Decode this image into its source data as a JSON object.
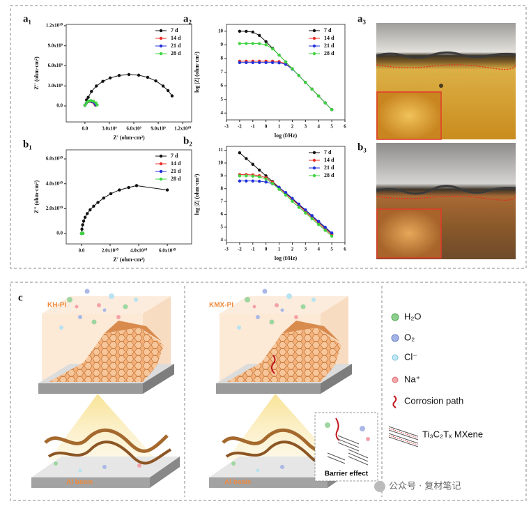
{
  "chart_data": [
    {
      "type": "line",
      "panel": "a₁",
      "x_label": "Z' (ohm·cm²)",
      "y_label": "Z'' (ohm·cm²)",
      "legend": "upper right",
      "xlim": [
        -2300000000.0,
        13100000000.0
      ],
      "ylim": [
        -2400000000.0,
        12200000000.0
      ],
      "xticks": [
        {
          "value": 0,
          "label": "0.0"
        },
        {
          "value": 3000000000.0,
          "label": "3.0x10⁹"
        },
        {
          "value": 6000000000.0,
          "label": "6.0x10⁹"
        },
        {
          "value": 9000000000.0,
          "label": "9.0x10⁹"
        },
        {
          "value": 12000000000.0,
          "label": "1.2x10¹⁰"
        }
      ],
      "yticks": [
        {
          "value": 0,
          "label": "0.0"
        },
        {
          "value": 3000000000.0,
          "label": "3.0x10⁹"
        },
        {
          "value": 6000000000.0,
          "label": "6.0x10⁹"
        },
        {
          "value": 9000000000.0,
          "label": "9.0x10⁹"
        },
        {
          "value": 12000000000.0,
          "label": "1.2x10¹⁰"
        }
      ],
      "series": [
        {
          "name": "7 d",
          "color": "#111111",
          "x": [
            200000000.0,
            400000000.0,
            800000000.0,
            1400000000.0,
            2200000000.0,
            3100000000.0,
            4200000000.0,
            5400000000.0,
            6600000000.0,
            7700000000.0,
            8700000000.0,
            9600000000.0,
            10200000000.0,
            10700000000.0
          ],
          "values": [
            900000000.0,
            1280000000.0,
            2170000000.0,
            2980000000.0,
            3680000000.0,
            4190000000.0,
            4560000000.0,
            4700000000.0,
            4600000000.0,
            4280000000.0,
            3750000000.0,
            2980000000.0,
            2300000000.0,
            1500000000.0
          ]
        },
        {
          "name": "14 d",
          "color": "#e8312a",
          "x": [
            0,
            170000000.0,
            380000000.0,
            640000000.0,
            890000000.0,
            1150000000.0,
            1280000000.0
          ],
          "values": [
            80000000.0,
            420000000.0,
            640000000.0,
            680000000.0,
            600000000.0,
            380000000.0,
            130000000.0
          ]
        },
        {
          "name": "21 d",
          "color": "#2130d8",
          "x": [
            0,
            180000000.0,
            400000000.0,
            680000000.0,
            940000000.0,
            1220000000.0,
            1350000000.0
          ],
          "values": [
            90000000.0,
            450000000.0,
            680000000.0,
            720000000.0,
            630000000.0,
            400000000.0,
            140000000.0
          ]
        },
        {
          "name": "28 d",
          "color": "#3fd43f",
          "x": [
            0,
            200000000.0,
            450000000.0,
            750000000.0,
            1050000000.0,
            1350000000.0,
            1500000000.0
          ],
          "values": [
            100000000.0,
            500000000.0,
            750000000.0,
            800000000.0,
            700000000.0,
            450000000.0,
            150000000.0
          ]
        }
      ]
    },
    {
      "type": "line",
      "panel": "a₂",
      "x_label": "log (f/Hz)",
      "y_label": "log |Z| (ohm·cm²)",
      "legend": "upper right",
      "xlim": [
        -3,
        6
      ],
      "ylim": [
        3.5,
        10.5
      ],
      "xticks": [
        -3,
        -2,
        -1,
        0,
        1,
        2,
        3,
        4,
        5,
        6
      ],
      "yticks": [
        4,
        5,
        6,
        7,
        8,
        9,
        10
      ],
      "x": [
        -2,
        -1.5,
        -1,
        -0.5,
        0,
        0.5,
        1,
        1.5,
        2,
        2.5,
        3,
        3.5,
        4,
        4.5,
        5
      ],
      "series": [
        {
          "name": "7 d",
          "color": "#111111",
          "values": [
            10.0,
            9.99,
            9.94,
            9.69,
            9.24,
            8.75,
            8.25,
            7.75,
            7.25,
            6.75,
            6.25,
            5.75,
            5.25,
            4.75,
            4.25
          ]
        },
        {
          "name": "14 d",
          "color": "#e8312a",
          "values": [
            7.8,
            7.8,
            7.8,
            7.8,
            7.8,
            7.8,
            7.77,
            7.62,
            7.23,
            6.75,
            6.25,
            5.75,
            5.25,
            4.75,
            4.25
          ]
        },
        {
          "name": "21 d",
          "color": "#2130d8",
          "values": [
            7.7,
            7.7,
            7.7,
            7.7,
            7.7,
            7.7,
            7.68,
            7.57,
            7.22,
            6.75,
            6.25,
            5.75,
            5.25,
            4.75,
            4.25
          ]
        },
        {
          "name": "28 d",
          "color": "#3fd43f",
          "values": [
            9.1,
            9.1,
            9.1,
            9.09,
            9.01,
            8.71,
            8.25,
            7.75,
            7.25,
            6.75,
            6.25,
            5.75,
            5.25,
            4.75,
            4.25
          ]
        }
      ]
    },
    {
      "type": "line",
      "panel": "b₁",
      "x_label": "Z' (ohm·cm²)",
      "y_label": "Z'' (ohm·cm²)",
      "legend": "upper right",
      "xlim": [
        -10700000000.0,
        77000000000.0
      ],
      "ylim": [
        -8400000000.0,
        67300000000.0
      ],
      "xticks": [
        {
          "value": 0,
          "label": "0.0"
        },
        {
          "value": 20000000000.0,
          "label": "2.0x10¹⁰"
        },
        {
          "value": 40000000000.0,
          "label": "4.0x10¹⁰"
        },
        {
          "value": 60000000000.0,
          "label": "6.0x10¹⁰"
        }
      ],
      "yticks": [
        {
          "value": 0,
          "label": "0.0"
        },
        {
          "value": 20000000000.0,
          "label": "2.0x10¹⁰"
        },
        {
          "value": 40000000000.0,
          "label": "4.0x10¹⁰"
        },
        {
          "value": 60000000000.0,
          "label": "6.0x10¹⁰"
        }
      ],
      "series": [
        {
          "name": "7 d",
          "color": "#111111",
          "x": [
            0,
            300000000.0,
            800000000.0,
            1500000000.0,
            2500000000.0,
            4000000000.0,
            6000000000.0,
            8500000000.0,
            11500000000.0,
            15500000000.0,
            20500000000.0,
            26500000000.0,
            33000000000.0,
            38500000000.0,
            60000000000.0
          ],
          "values": [
            0,
            3500000000.0,
            7000000000.0,
            10000000000.0,
            13000000000.0,
            16000000000.0,
            19000000000.0,
            22000000000.0,
            25000000000.0,
            28500000000.0,
            32000000000.0,
            35000000000.0,
            37000000000.0,
            38500000000.0,
            35000000000.0
          ]
        },
        {
          "name": "14 d",
          "color": "#e8312a",
          "x": [
            0,
            200000000.0,
            500000000.0,
            800000000.0,
            1000000000.0
          ],
          "values": [
            0,
            300000000.0,
            400000000.0,
            300000000.0,
            100000000.0
          ]
        },
        {
          "name": "21 d",
          "color": "#2130d8",
          "x": [
            0,
            200000000.0,
            500000000.0,
            800000000.0,
            1000000000.0
          ],
          "values": [
            0,
            300000000.0,
            400000000.0,
            300000000.0,
            100000000.0
          ]
        },
        {
          "name": "28 d",
          "color": "#3fd43f",
          "x": [
            0,
            200000000.0,
            500000000.0,
            800000000.0,
            1000000000.0
          ],
          "values": [
            0,
            300000000.0,
            400000000.0,
            300000000.0,
            100000000.0
          ]
        }
      ]
    },
    {
      "type": "line",
      "panel": "b₂",
      "x_label": "log (f/Hz)",
      "y_label": "log |Z| (ohm·cm²)",
      "legend": "upper right",
      "xlim": [
        -3,
        6
      ],
      "ylim": [
        3.8,
        11.3
      ],
      "xticks": [
        -3,
        -2,
        -1,
        0,
        1,
        2,
        3,
        4,
        5,
        6
      ],
      "yticks": [
        4,
        5,
        6,
        7,
        8,
        9,
        10,
        11
      ],
      "x": [
        -2,
        -1.5,
        -1,
        -0.5,
        0,
        0.5,
        1,
        1.5,
        2,
        2.5,
        3,
        3.5,
        4,
        4.5,
        5
      ],
      "series": [
        {
          "name": "7 d",
          "color": "#111111",
          "values": [
            10.8,
            10.35,
            9.9,
            9.45,
            9.0,
            8.55,
            8.1,
            7.65,
            7.2,
            6.75,
            6.3,
            5.85,
            5.4,
            4.95,
            4.5
          ]
        },
        {
          "name": "14 d",
          "color": "#e8312a",
          "values": [
            9.1,
            9.1,
            9.08,
            9.02,
            8.85,
            8.5,
            8.05,
            7.6,
            7.15,
            6.7,
            6.2,
            5.75,
            5.3,
            4.85,
            4.4
          ]
        },
        {
          "name": "21 d",
          "color": "#2130d8",
          "values": [
            8.6,
            8.6,
            8.6,
            8.58,
            8.52,
            8.38,
            8.1,
            7.7,
            7.25,
            6.8,
            6.35,
            5.9,
            5.45,
            5.0,
            4.55
          ]
        },
        {
          "name": "28 d",
          "color": "#3fd43f",
          "values": [
            9.0,
            9.0,
            8.98,
            8.92,
            8.75,
            8.4,
            7.95,
            7.5,
            7.02,
            6.55,
            6.1,
            5.65,
            5.2,
            4.75,
            4.3
          ]
        }
      ]
    }
  ],
  "photo_panels": [
    "a₃",
    "b₃"
  ],
  "diagram": {
    "panel": "c",
    "left_title": "KH-PI",
    "right_title": "KMX-PI",
    "substrate_left": "Al basis",
    "substrate_right": "Al basis",
    "inset_label": "Barrier effect",
    "legend": [
      "H₂O",
      "O₂",
      "Cl⁻",
      "Na⁺",
      "Corrosion path",
      "Ti₃C₂Tₓ MXene"
    ]
  },
  "watermark": "公众号 · 复材笔记"
}
